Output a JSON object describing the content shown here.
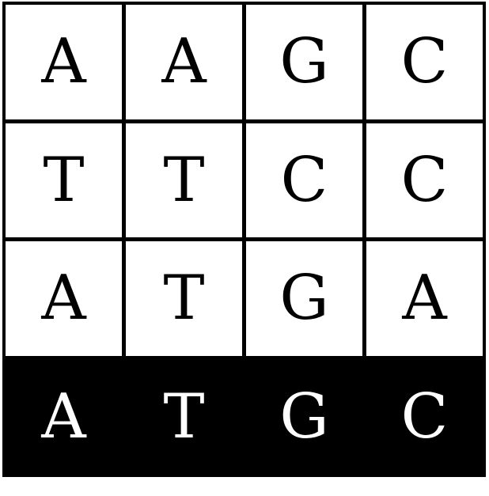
{
  "grid": {
    "rows": [
      [
        "A",
        "A",
        "G",
        "C"
      ],
      [
        "T",
        "T",
        "C",
        "C"
      ],
      [
        "A",
        "T",
        "G",
        "A"
      ]
    ],
    "consensus": [
      "A",
      "T",
      "G",
      "C"
    ]
  },
  "colors": {
    "cell_background": "#ffffff",
    "cell_text": "#000000",
    "consensus_background": "#000000",
    "consensus_text": "#ffffff",
    "grid_line": "#000000"
  }
}
